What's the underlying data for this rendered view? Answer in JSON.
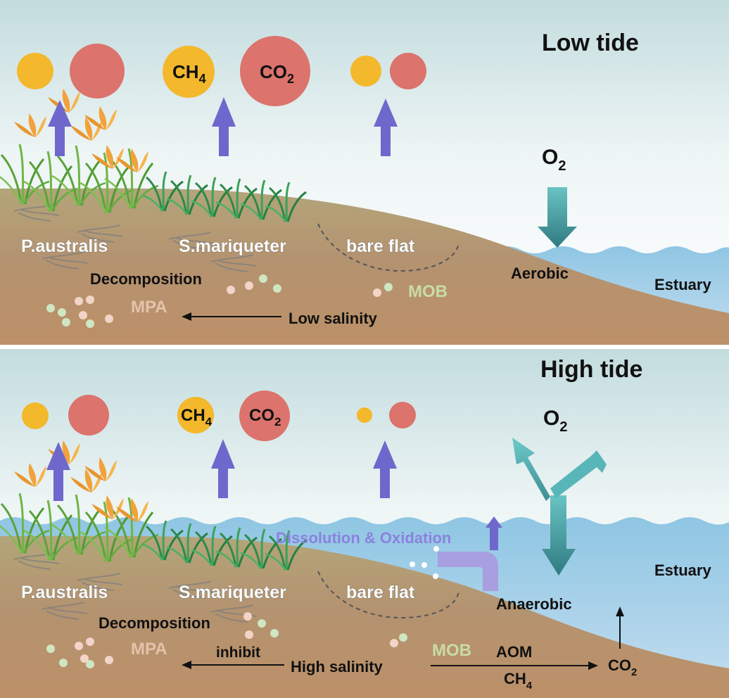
{
  "colors": {
    "ch4": "#f3b82b",
    "co2": "#dc736c",
    "flux_arrow": "#6f68cc",
    "o2_arrow": "#3f9aa0",
    "dissolution_text": "#8b82df",
    "mob_text": "#c8dca8",
    "mpa_text": "#e4c2ac",
    "soil": "#b89a72",
    "water": "#8ec6e2"
  },
  "top": {
    "title": "Low tide",
    "o2": {
      "base": "O",
      "sub": "2"
    },
    "ch4": {
      "base": "CH",
      "sub": "4"
    },
    "co2": {
      "base": "CO",
      "sub": "2"
    },
    "habitats": [
      "P.australis",
      "S.mariqueter",
      "bare flat"
    ],
    "decomposition": "Decomposition",
    "mpa": "MPA",
    "mob": "MOB",
    "salinity": "Low salinity",
    "aerobic": "Aerobic",
    "estuary": "Estuary"
  },
  "bottom": {
    "title": "High tide",
    "o2": {
      "base": "O",
      "sub": "2"
    },
    "ch4": {
      "base": "CH",
      "sub": "4"
    },
    "co2": {
      "base": "CO",
      "sub": "2"
    },
    "habitats": [
      "P.australis",
      "S.mariqueter",
      "bare flat"
    ],
    "dissolution": "Dissolution & Oxidation",
    "decomposition": "Decomposition",
    "mpa": "MPA",
    "inhibit": "inhibit",
    "salinity": "High salinity",
    "mob": "MOB",
    "aom": "AOM",
    "ch4_out": {
      "base": "CH",
      "sub": "4"
    },
    "co2_out": {
      "base": "CO",
      "sub": "2"
    },
    "anaerobic": "Anaerobic",
    "estuary": "Estuary"
  }
}
